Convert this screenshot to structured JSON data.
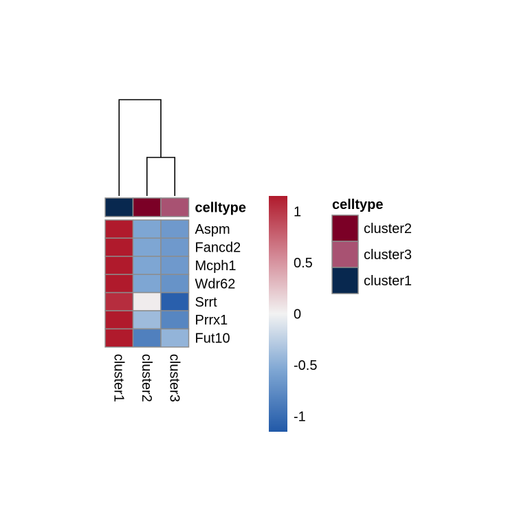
{
  "chart_data": {
    "type": "heatmap",
    "columns": [
      "cluster1",
      "cluster2",
      "cluster3"
    ],
    "rows": [
      "Aspm",
      "Fancd2",
      "Mcph1",
      "Wdr62",
      "Srrt",
      "Prrx1",
      "Fut10"
    ],
    "values": [
      [
        1.15,
        -0.55,
        -0.65
      ],
      [
        1.15,
        -0.55,
        -0.65
      ],
      [
        1.15,
        -0.55,
        -0.65
      ],
      [
        1.15,
        -0.55,
        -0.7
      ],
      [
        1.05,
        0.03,
        -1.1
      ],
      [
        1.15,
        -0.4,
        -0.8
      ],
      [
        1.15,
        -0.85,
        -0.45
      ]
    ],
    "color_scale": {
      "min": -1.15,
      "max": 1.15,
      "stops": [
        {
          "v": -1.15,
          "color": "#2159A8"
        },
        {
          "v": -0.55,
          "color": "#7EA6D3"
        },
        {
          "v": 0,
          "color": "#F2F2F2"
        },
        {
          "v": 0.55,
          "color": "#D48B98"
        },
        {
          "v": 1.15,
          "color": "#B01A2C"
        }
      ],
      "ticks": [
        {
          "value": 1,
          "label": "1"
        },
        {
          "value": 0.5,
          "label": "0.5"
        },
        {
          "value": 0,
          "label": "0"
        },
        {
          "value": -0.5,
          "label": "-0.5"
        },
        {
          "value": -1,
          "label": "-1"
        }
      ]
    },
    "annotation": {
      "name": "celltype",
      "values": [
        "cluster1",
        "cluster2",
        "cluster3"
      ],
      "colors": {
        "cluster2": "#7B0026",
        "cluster3": "#A85272",
        "cluster1": "#08284F"
      },
      "legend_order": [
        "cluster2",
        "cluster3",
        "cluster1"
      ]
    },
    "dendrogram": {
      "merges": [
        {
          "left": "cluster2",
          "right": "cluster3",
          "height": 0.4
        },
        {
          "left": "cluster1",
          "right": "cluster2+cluster3",
          "height": 1.0
        }
      ]
    },
    "grid_color": "#8C8C8C"
  }
}
